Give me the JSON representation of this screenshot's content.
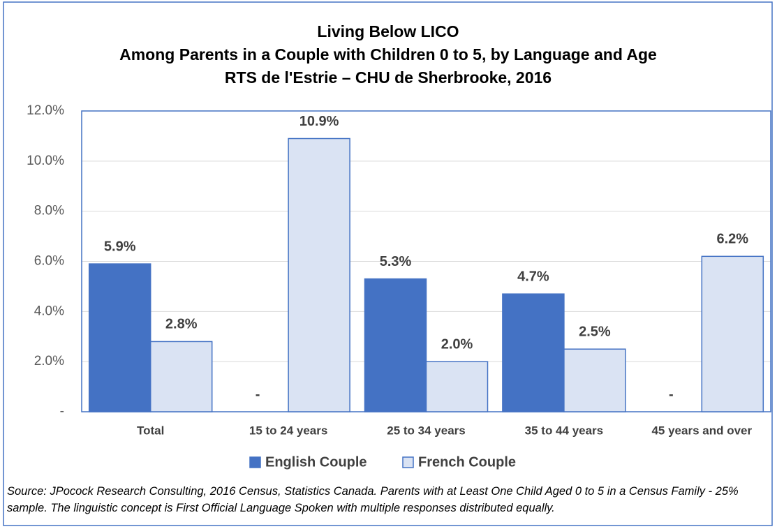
{
  "chart_data": {
    "type": "bar",
    "title": [
      "Living Below LICO",
      "Among Parents in a Couple with Children 0 to 5, by Language and Age",
      "RTS de l'Estrie – CHU de Sherbrooke, 2016"
    ],
    "categories": [
      "Total",
      "15 to 24 years",
      "25 to 34 years",
      "35 to 44 years",
      "45 years and over"
    ],
    "series": [
      {
        "name": "English Couple",
        "color": "#4472c4",
        "values": [
          5.9,
          0,
          5.3,
          4.7,
          0
        ],
        "value_labels": [
          "5.9%",
          "-",
          "5.3%",
          "4.7%",
          "-"
        ]
      },
      {
        "name": "French Couple",
        "color": "#dae3f3",
        "values": [
          2.8,
          10.9,
          2.0,
          2.5,
          6.2
        ],
        "value_labels": [
          "2.8%",
          "10.9%",
          "2.0%",
          "2.5%",
          "6.2%"
        ]
      }
    ],
    "ylim": [
      0,
      12
    ],
    "yticks": [
      {
        "value": 0,
        "label": "-"
      },
      {
        "value": 2,
        "label": "2.0%"
      },
      {
        "value": 4,
        "label": "4.0%"
      },
      {
        "value": 6,
        "label": "6.0%"
      },
      {
        "value": 8,
        "label": "8.0%"
      },
      {
        "value": 10,
        "label": "10.0%"
      },
      {
        "value": 12,
        "label": "12.0%"
      }
    ],
    "grid": true,
    "legend": "bottom",
    "note": "Source: JPocock Research Consulting, 2016 Census, Statistics Canada. Parents with at Least One Child Aged 0 to 5 in a Census Family - 25% sample. The linguistic concept is First Official Language Spoken with multiple responses distributed equally."
  }
}
